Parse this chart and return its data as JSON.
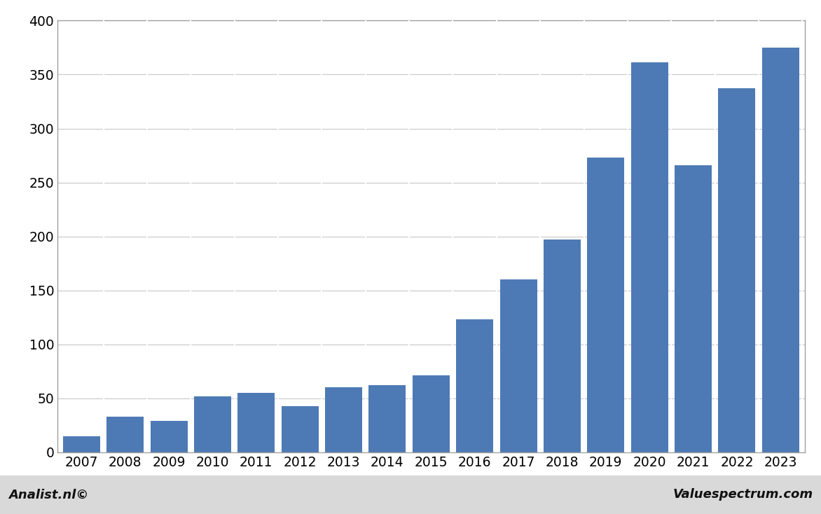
{
  "years": [
    2007,
    2008,
    2009,
    2010,
    2011,
    2012,
    2013,
    2014,
    2015,
    2016,
    2017,
    2018,
    2019,
    2020,
    2021,
    2022,
    2023
  ],
  "values": [
    15,
    33,
    29,
    52,
    55,
    43,
    60,
    62,
    71,
    123,
    160,
    197,
    273,
    361,
    266,
    337,
    375
  ],
  "bar_color": "#4d7ab5",
  "ylim": [
    0,
    400
  ],
  "yticks": [
    0,
    50,
    100,
    150,
    200,
    250,
    300,
    350,
    400
  ],
  "background_color": "#ffffff",
  "plot_bg_color": "#ffffff",
  "footer_bg_color": "#d9d9d9",
  "border_color": "#a0a0a0",
  "grid_color": "#c8c8c8",
  "tick_fontsize": 13.5,
  "bottom_left_text": "Analist.nl©",
  "bottom_right_text": "Valuespectrum.com"
}
